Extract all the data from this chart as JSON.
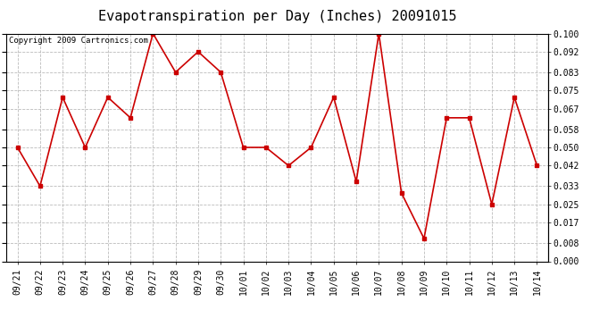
{
  "title": "Evapotranspiration per Day (Inches) 20091015",
  "copyright_text": "Copyright 2009 Cartronics.com",
  "x_labels": [
    "09/21",
    "09/22",
    "09/23",
    "09/24",
    "09/25",
    "09/26",
    "09/27",
    "09/28",
    "09/29",
    "09/30",
    "10/01",
    "10/02",
    "10/03",
    "10/04",
    "10/05",
    "10/06",
    "10/07",
    "10/08",
    "10/09",
    "10/10",
    "10/11",
    "10/12",
    "10/13",
    "10/14"
  ],
  "y_values": [
    0.05,
    0.033,
    0.072,
    0.05,
    0.072,
    0.063,
    0.1,
    0.083,
    0.092,
    0.083,
    0.05,
    0.05,
    0.042,
    0.05,
    0.072,
    0.035,
    0.1,
    0.03,
    0.01,
    0.063,
    0.063,
    0.025,
    0.072,
    0.042
  ],
  "y_ticks": [
    0.0,
    0.008,
    0.017,
    0.025,
    0.033,
    0.042,
    0.05,
    0.058,
    0.067,
    0.075,
    0.083,
    0.092,
    0.1
  ],
  "line_color": "#cc0000",
  "marker": "s",
  "marker_size": 2.5,
  "line_width": 1.2,
  "background_color": "#ffffff",
  "grid_color": "#bbbbbb",
  "ylim": [
    0.0,
    0.1
  ],
  "title_fontsize": 11,
  "copyright_fontsize": 6.5,
  "tick_fontsize": 7,
  "ytick_fontsize": 7
}
